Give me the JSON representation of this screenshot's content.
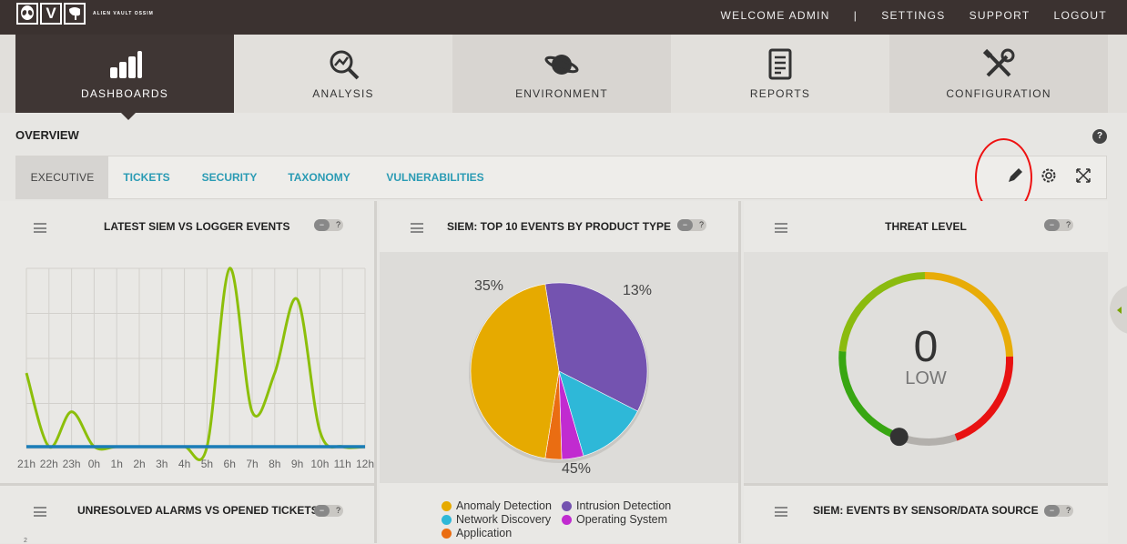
{
  "brand": {
    "letters": [
      "O",
      "V",
      "A"
    ],
    "name": "ALIEN VAULT OSSIM"
  },
  "topnav": {
    "welcome": "WELCOME ADMIN",
    "separator": "|",
    "settings": "SETTINGS",
    "support": "SUPPORT",
    "logout": "LOGOUT"
  },
  "mainnav": [
    {
      "label": "DASHBOARDS",
      "icon": "bar-chart-icon",
      "active": true
    },
    {
      "label": "ANALYSIS",
      "icon": "magnifier-chart-icon"
    },
    {
      "label": "ENVIRONMENT",
      "icon": "planet-icon"
    },
    {
      "label": "REPORTS",
      "icon": "document-icon"
    },
    {
      "label": "CONFIGURATION",
      "icon": "tools-icon"
    }
  ],
  "page": {
    "title": "OVERVIEW",
    "help": "?"
  },
  "tabs": [
    {
      "label": "EXECUTIVE",
      "active": true
    },
    {
      "label": "TICKETS"
    },
    {
      "label": "SECURITY"
    },
    {
      "label": "TAXONOMY"
    },
    {
      "label": "VULNERABILITIES"
    }
  ],
  "toggle": {
    "minus": "−",
    "help": "?"
  },
  "panels": {
    "siem_logger": {
      "title": "LATEST SIEM VS LOGGER EVENTS"
    },
    "top10": {
      "title": "SIEM: TOP 10 EVENTS BY PRODUCT TYPE"
    },
    "threat": {
      "title": "THREAT LEVEL",
      "value": "0",
      "level": "LOW"
    },
    "alarms": {
      "title": "UNRESOLVED ALARMS VS OPENED TICKETS",
      "axis_tick": "2"
    },
    "sensor": {
      "title": "SIEM: EVENTS BY SENSOR/DATA SOURCE"
    }
  },
  "chart_data": [
    {
      "type": "line",
      "x": [
        "21h",
        "22h",
        "23h",
        "0h",
        "1h",
        "2h",
        "3h",
        "4h",
        "5h",
        "6h",
        "7h",
        "8h",
        "9h",
        "10h",
        "11h",
        "12h"
      ],
      "series": [
        {
          "color": "#8cbf0a",
          "values": [
            95,
            0,
            45,
            0,
            0,
            0,
            0,
            0,
            0,
            230,
            45,
            95,
            190,
            20,
            0,
            0
          ]
        },
        {
          "color": "#1b7db8",
          "values": [
            0,
            0,
            0,
            0,
            0,
            0,
            0,
            0,
            0,
            0,
            0,
            0,
            0,
            0,
            0,
            0
          ]
        }
      ]
    },
    {
      "type": "pie",
      "slices": [
        {
          "label": "Anomaly Detection",
          "percent": 45,
          "color": "#e6aa00"
        },
        {
          "label": "Intrusion Detection",
          "percent": 35,
          "color": "#7453b0"
        },
        {
          "label": "Network Discovery",
          "percent": 13,
          "color": "#2eb8d8"
        },
        {
          "label": "Operating System",
          "percent": 4,
          "color": "#c12bd0"
        },
        {
          "label": "Application",
          "percent": 3,
          "color": "#ea6d12"
        }
      ],
      "data_labels": [
        "35%",
        "13%",
        "45%"
      ]
    }
  ]
}
